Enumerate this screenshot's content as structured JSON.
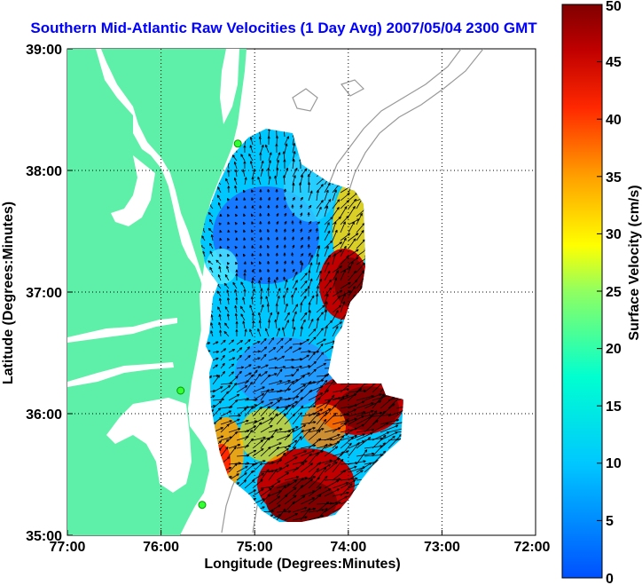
{
  "title": "Southern Mid-Atlantic Raw Velocities (1 Day Avg) 2007/05/04 2300 GMT",
  "chart_data": {
    "type": "vector-field",
    "title": "Southern Mid-Atlantic Raw Velocities (1 Day Avg) 2007/05/04 2300 GMT",
    "xlabel": "Longitude (Degrees:Minutes)",
    "ylabel": "Latitude (Degrees:Minutes)",
    "x_ticks": [
      "77:00",
      "76:00",
      "75:00",
      "74:00",
      "73:00",
      "72:00"
    ],
    "y_ticks": [
      "39:00",
      "38:00",
      "37:00",
      "36:00",
      "35:00"
    ],
    "xlim": [
      -77,
      -72
    ],
    "ylim": [
      35,
      39
    ],
    "grid": true,
    "colorbar": {
      "label": "Surface Velocity (cm/s)",
      "min": 0,
      "max": 50,
      "ticks": [
        "0",
        "5",
        "10",
        "15",
        "20",
        "25",
        "30",
        "35",
        "40",
        "45",
        "50"
      ],
      "colormap": "jet"
    },
    "stations": [
      {
        "lon": -75.09,
        "lat": 38.23
      },
      {
        "lon": -75.7,
        "lat": 36.19
      },
      {
        "lon": -75.47,
        "lat": 35.25
      }
    ]
  },
  "colors": {
    "land": "#5ef0a8",
    "water": "#ffffff",
    "title": "#0000ff",
    "bathymetry": "#999999",
    "station": "#33ff33"
  }
}
